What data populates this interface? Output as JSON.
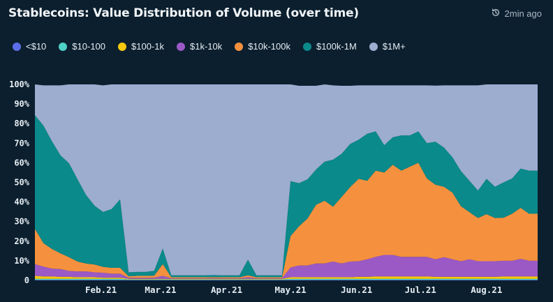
{
  "header": {
    "title": "Stablecoins: Value Distribution of Volume (over time)",
    "updated": "2min ago"
  },
  "colors": {
    "background": "#0b1f2e",
    "lt10": "#5b6ee8",
    "10_100": "#4fd1c5",
    "100_1k": "#f6c90e",
    "1k_10k": "#9b59c6",
    "10k_100k": "#f5913e",
    "100k_1m": "#0a8a8a",
    "1m_plus": "#9cadd0"
  },
  "legend": [
    {
      "label": "<$10",
      "color": "#5b6ee8"
    },
    {
      "label": "$10-100",
      "color": "#4fd1c5"
    },
    {
      "label": "$100-1k",
      "color": "#f6c90e"
    },
    {
      "label": "$1k-10k",
      "color": "#9b59c6"
    },
    {
      "label": "$10k-100k",
      "color": "#f5913e"
    },
    {
      "label": "$100k-1M",
      "color": "#0a8a8a"
    },
    {
      "label": "$1M+",
      "color": "#9cadd0"
    }
  ],
  "chart_data": {
    "type": "area",
    "stacked": true,
    "normalized": true,
    "y_ticks": [
      "0",
      "10%",
      "20%",
      "30%",
      "40%",
      "50%",
      "60%",
      "70%",
      "80%",
      "90%",
      "100%"
    ],
    "ylim": [
      0,
      100
    ],
    "x_ticks": [
      "Feb.21",
      "Mar.21",
      "Apr.21",
      "May.21",
      "Jun.21",
      "Jul.21",
      "Aug.21"
    ],
    "x_tick_positions_day": [
      31,
      59,
      90,
      120,
      151,
      181,
      212
    ],
    "x": [
      0,
      4,
      8,
      12,
      16,
      20,
      24,
      28,
      32,
      36,
      40,
      44,
      48,
      52,
      56,
      60,
      64,
      68,
      72,
      76,
      80,
      84,
      88,
      92,
      96,
      100,
      104,
      108,
      112,
      116,
      120,
      124,
      128,
      132,
      136,
      140,
      144,
      148,
      152,
      156,
      160,
      164,
      168,
      172,
      176,
      180,
      184,
      188,
      192,
      196,
      200,
      204,
      208,
      212,
      216,
      220,
      224,
      228,
      232,
      236
    ],
    "series": [
      {
        "name": "<$10",
        "values": [
          0.3,
          0.3,
          0.3,
          0.3,
          0.3,
          0.3,
          0.3,
          0.3,
          0.3,
          0.3,
          0.3,
          0.2,
          0.2,
          0.2,
          0.2,
          0.2,
          0.2,
          0.2,
          0.2,
          0.2,
          0.2,
          0.2,
          0.2,
          0.2,
          0.2,
          0.2,
          0.2,
          0.2,
          0.2,
          0.2,
          0.3,
          0.3,
          0.3,
          0.3,
          0.3,
          0.3,
          0.3,
          0.3,
          0.3,
          0.3,
          0.3,
          0.3,
          0.3,
          0.3,
          0.3,
          0.3,
          0.3,
          0.3,
          0.3,
          0.3,
          0.3,
          0.3,
          0.3,
          0.3,
          0.3,
          0.3,
          0.3,
          0.3,
          0.3,
          0.3
        ]
      },
      {
        "name": "$10-100",
        "values": [
          0.5,
          0.5,
          0.5,
          0.5,
          0.5,
          0.5,
          0.5,
          0.5,
          0.5,
          0.5,
          0.5,
          0.3,
          0.3,
          0.3,
          0.3,
          0.3,
          0.3,
          0.3,
          0.3,
          0.3,
          0.3,
          0.3,
          0.3,
          0.3,
          0.3,
          0.3,
          0.3,
          0.3,
          0.3,
          0.3,
          0.5,
          0.5,
          0.5,
          0.5,
          0.5,
          0.5,
          0.5,
          0.5,
          0.5,
          0.5,
          0.5,
          0.5,
          0.5,
          0.5,
          0.5,
          0.5,
          0.5,
          0.5,
          0.5,
          0.5,
          0.5,
          0.5,
          0.5,
          0.5,
          0.5,
          0.5,
          0.5,
          0.5,
          0.5,
          0.5
        ]
      },
      {
        "name": "$100-1k",
        "values": [
          1.5,
          1.2,
          1.2,
          1.0,
          1.0,
          0.8,
          0.8,
          0.8,
          0.6,
          0.6,
          0.6,
          0.3,
          0.3,
          0.3,
          0.3,
          0.3,
          0.3,
          0.3,
          0.3,
          0.3,
          0.3,
          0.3,
          0.3,
          0.3,
          0.3,
          0.3,
          0.3,
          0.3,
          0.3,
          0.3,
          0.8,
          0.8,
          0.8,
          0.8,
          0.8,
          0.8,
          0.8,
          0.8,
          1.0,
          1.0,
          1.2,
          1.2,
          1.2,
          1.2,
          1.2,
          1.2,
          1.2,
          1.0,
          1.0,
          1.0,
          1.0,
          1.0,
          1.0,
          1.0,
          1.0,
          1.2,
          1.2,
          1.2,
          1.2,
          1.2
        ]
      },
      {
        "name": "$1k-10k",
        "values": [
          6,
          5,
          4,
          4,
          3,
          3,
          3,
          2.5,
          2.5,
          2,
          2,
          0.5,
          0.5,
          0.5,
          0.6,
          1.5,
          0.3,
          0.3,
          0.3,
          0.3,
          0.3,
          0.4,
          0.3,
          0.3,
          0.3,
          0.8,
          0.3,
          0.3,
          0.3,
          0.3,
          5,
          6,
          6,
          7,
          7,
          8,
          7,
          8,
          8,
          9,
          10,
          11,
          11,
          10,
          10,
          10,
          10,
          9,
          10,
          9,
          8,
          9,
          8,
          8,
          8,
          8,
          8,
          9,
          8,
          8
        ]
      },
      {
        "name": "$10k-100k",
        "values": [
          18,
          12,
          10,
          8,
          7,
          5,
          4,
          4,
          3,
          3,
          3,
          0.8,
          1.0,
          1.0,
          1.0,
          6,
          0.5,
          0.5,
          0.5,
          0.5,
          0.5,
          0.5,
          0.5,
          0.5,
          0.5,
          1.0,
          0.5,
          0.5,
          0.5,
          0.5,
          16,
          20,
          24,
          30,
          32,
          28,
          34,
          38,
          42,
          40,
          44,
          42,
          46,
          44,
          46,
          48,
          40,
          38,
          36,
          34,
          28,
          24,
          22,
          24,
          22,
          22,
          24,
          26,
          24,
          24
        ]
      },
      {
        "name": "$100k-1M",
        "values": [
          58,
          60,
          55,
          50,
          48,
          42,
          35,
          30,
          28,
          30,
          35,
          2,
          2,
          2,
          2.5,
          8,
          1,
          1,
          1,
          1,
          1,
          1,
          1,
          1,
          1,
          8,
          1,
          1,
          1,
          1,
          28,
          22,
          20,
          18,
          20,
          24,
          22,
          22,
          20,
          24,
          20,
          14,
          14,
          18,
          16,
          16,
          18,
          22,
          20,
          18,
          18,
          16,
          14,
          18,
          16,
          18,
          18,
          20,
          22,
          22
        ]
      },
      {
        "name": "$1M+",
        "values": [
          15.7,
          20.5,
          28.5,
          35.7,
          40.2,
          48.9,
          56.4,
          61.9,
          64.6,
          63.6,
          58.6,
          95.9,
          95.7,
          95.7,
          95.1,
          83.7,
          97.4,
          97.4,
          97.4,
          97.4,
          97.4,
          97.3,
          97.4,
          97.4,
          97.4,
          89.4,
          97.4,
          97.4,
          97.4,
          97.4,
          49.4,
          49.7,
          47.7,
          42.7,
          39.7,
          37.9,
          34.7,
          29.7,
          27.7,
          24.7,
          23.5,
          30.5,
          26.5,
          25.5,
          25.5,
          23.5,
          29.5,
          28.6,
          31.7,
          36.7,
          43.7,
          48.7,
          53.7,
          48.7,
          52.7,
          50.7,
          48.5,
          44.5,
          44.5,
          44.5
        ]
      }
    ]
  }
}
